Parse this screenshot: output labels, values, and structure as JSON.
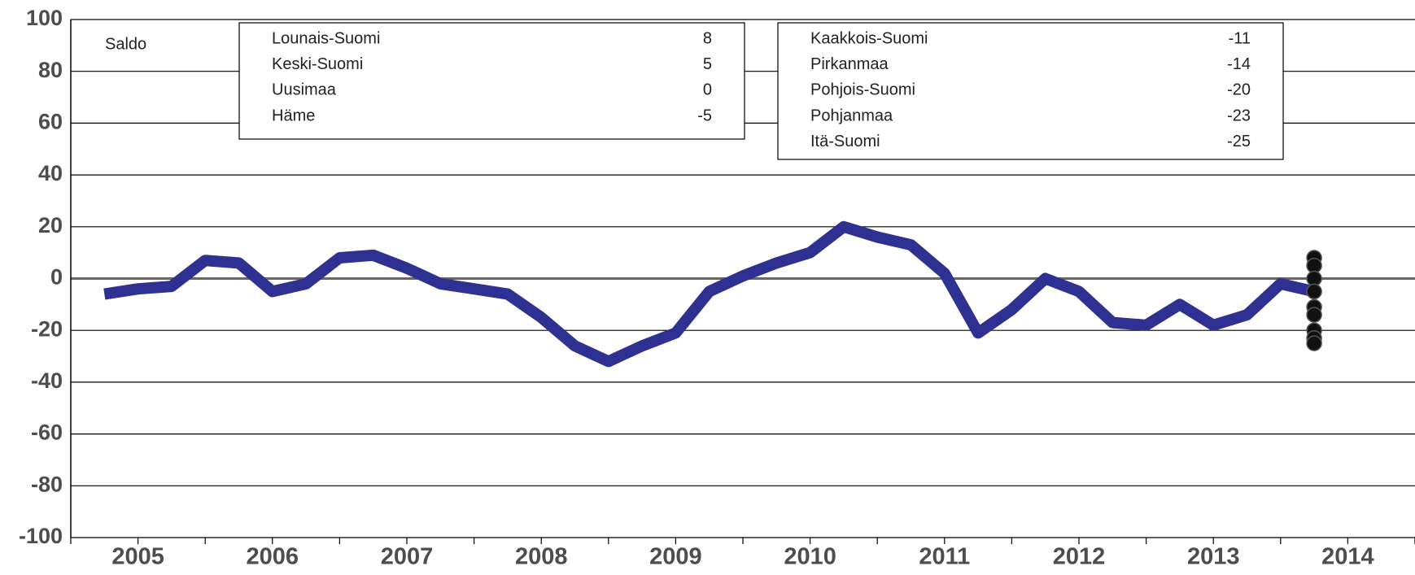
{
  "chart_data": {
    "type": "line",
    "label": "Saldo",
    "year_labels": [
      "2005",
      "2006",
      "2007",
      "2008",
      "2009",
      "2010",
      "2011",
      "2012",
      "2013",
      "2014"
    ],
    "series": [
      {
        "color": "#2e3192",
        "values": [
          -6,
          -4,
          -3,
          7,
          6,
          -5,
          -2,
          8,
          9,
          4,
          -2,
          -4,
          -6,
          -15,
          -26,
          -32,
          -26,
          -21,
          -5,
          1,
          6,
          10,
          20,
          16,
          13,
          2,
          -21,
          -12,
          0,
          -5,
          -17,
          -18,
          -10,
          -18,
          -14,
          -2,
          -5
        ]
      }
    ],
    "regions_left": [
      {
        "name": "Lounais-Suomi",
        "value": 8
      },
      {
        "name": "Keski-Suomi",
        "value": 5
      },
      {
        "name": "Uusimaa",
        "value": 0
      },
      {
        "name": "Häme",
        "value": -5
      }
    ],
    "regions_right": [
      {
        "name": "Kaakkois-Suomi",
        "value": -11
      },
      {
        "name": "Pirkanmaa",
        "value": -14
      },
      {
        "name": "Pohjois-Suomi",
        "value": -20
      },
      {
        "name": "Pohjanmaa",
        "value": -23
      },
      {
        "name": "Itä-Suomi",
        "value": -25
      }
    ],
    "ylim": [
      -100,
      100
    ],
    "yticks": [
      -100,
      -80,
      -60,
      -40,
      -20,
      0,
      20,
      40,
      60,
      80,
      100
    ],
    "grid": true
  }
}
